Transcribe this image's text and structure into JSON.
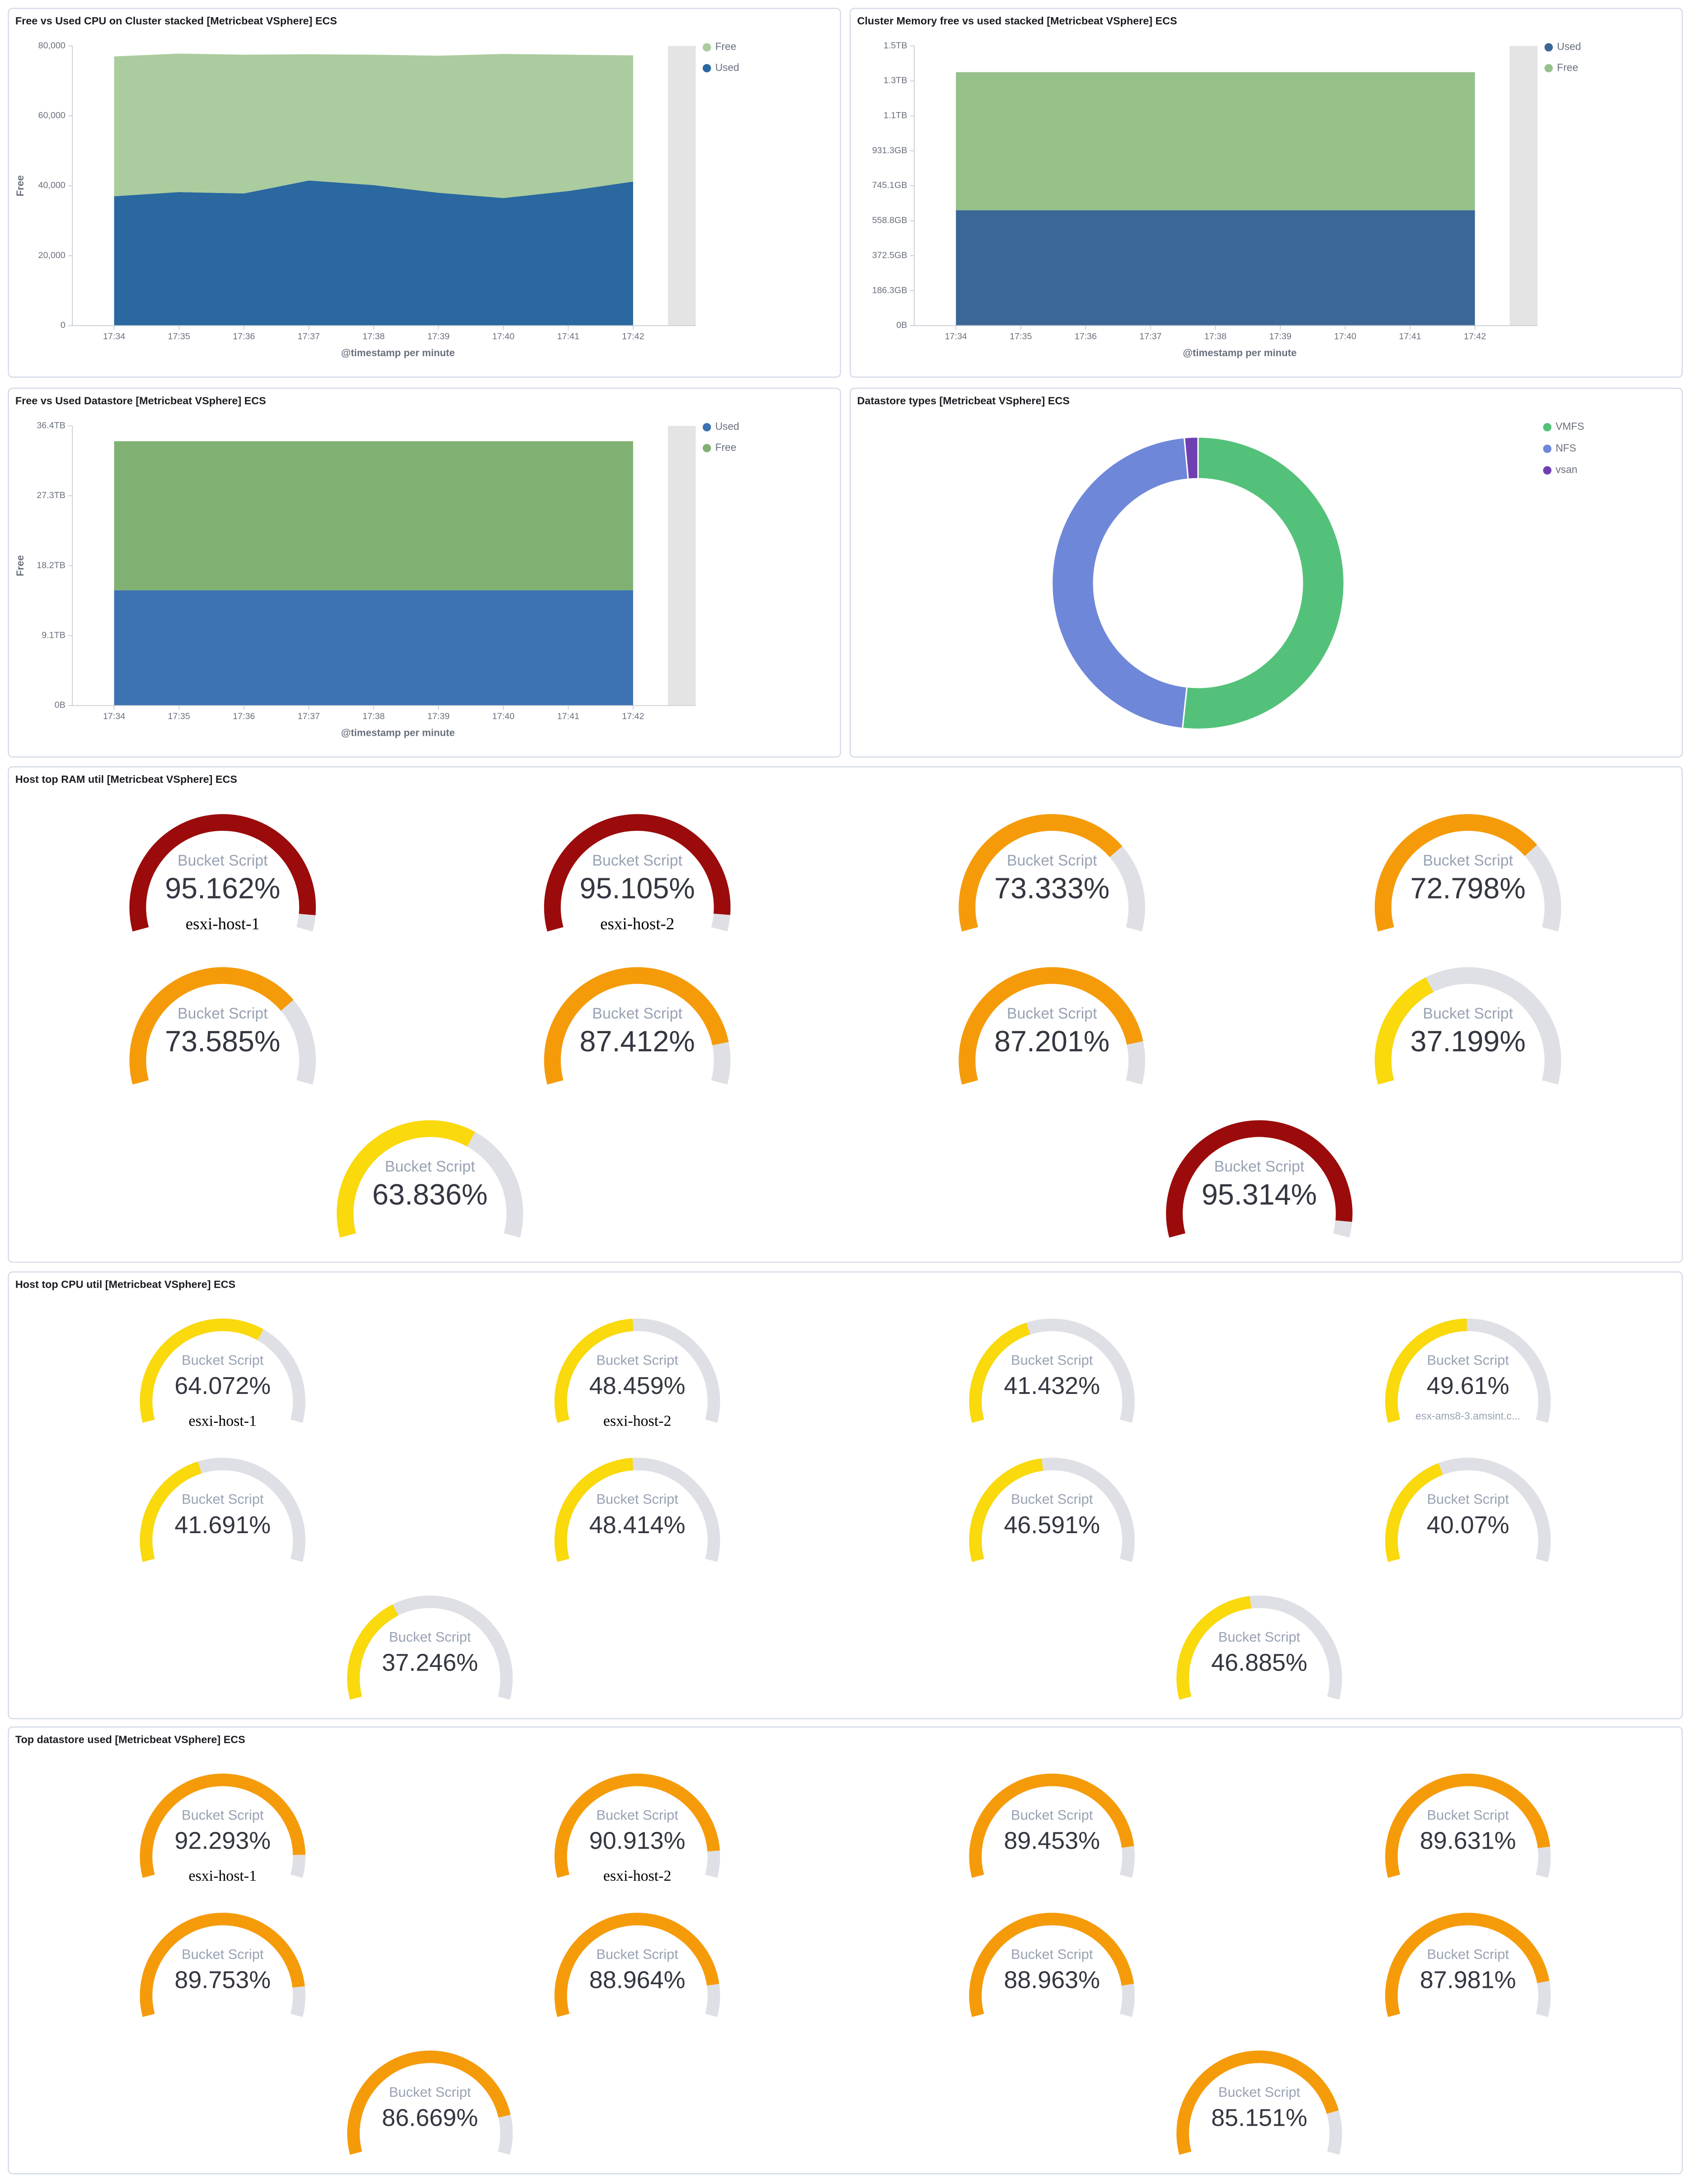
{
  "chart_data": [
    {
      "type": "area",
      "title": "Free vs Used CPU on Cluster stacked [Metricbeat VSphere] ECS",
      "x_label": "@timestamp per minute",
      "y_label": "Free",
      "reverse_legend": true,
      "categories": [
        "17:34",
        "17:35",
        "17:36",
        "17:37",
        "17:38",
        "17:39",
        "17:40",
        "17:41",
        "17:42"
      ],
      "series": [
        {
          "name": "Used",
          "color": "#2a689f",
          "values": [
            37000,
            38200,
            37800,
            41500,
            40200,
            38000,
            36500,
            38500,
            41200
          ]
        },
        {
          "name": "Free",
          "color": "#abcc9e",
          "values": [
            40000,
            39600,
            39700,
            36100,
            37300,
            39200,
            41200,
            39000,
            36100
          ]
        }
      ],
      "ylim": [
        0,
        80000
      ],
      "yticks": [
        0,
        {
          "value": 20000,
          "label": "20,000"
        },
        {
          "value": 40000,
          "label": "40,000"
        },
        {
          "value": 60000,
          "label": "60,000"
        },
        {
          "value": 80000,
          "label": "80,000"
        }
      ]
    },
    {
      "type": "area",
      "title": "Cluster Memory free vs used stacked [Metricbeat VSphere] ECS",
      "x_label": "@timestamp per minute",
      "categories": [
        "17:34",
        "17:35",
        "17:36",
        "17:37",
        "17:38",
        "17:39",
        "17:40",
        "17:41",
        "17:42"
      ],
      "series": [
        {
          "name": "Used",
          "color": "#3b6796",
          "values": [
            660000000000,
            660000000000,
            660000000000,
            660000000000,
            660000000000,
            660000000000,
            660000000000,
            660000000000,
            660000000000
          ]
        },
        {
          "name": "Free",
          "color": "#97c18b",
          "values": [
            790000000000,
            790000000000,
            790000000000,
            790000000000,
            790000000000,
            790000000000,
            790000000000,
            790000000000,
            790000000000
          ]
        }
      ],
      "ylim": [
        0,
        1600000000000
      ],
      "yticks": [
        {
          "value": 0,
          "label": "0B"
        },
        {
          "value": 200000000000,
          "label": "186.3GB"
        },
        {
          "value": 400000000000,
          "label": "372.5GB"
        },
        {
          "value": 600000000000,
          "label": "558.8GB"
        },
        {
          "value": 800000000000,
          "label": "745.1GB"
        },
        {
          "value": 1000000000000,
          "label": "931.3GB"
        },
        {
          "value": 1200000000000,
          "label": "1.1TB"
        },
        {
          "value": 1400000000000,
          "label": "1.3TB"
        },
        {
          "value": 1600000000000,
          "label": "1.5TB"
        }
      ]
    },
    {
      "type": "area",
      "title": "Free vs Used Datastore [Metricbeat VSphere] ECS",
      "x_label": "@timestamp per minute",
      "y_label": "Free",
      "categories": [
        "17:34",
        "17:35",
        "17:36",
        "17:37",
        "17:38",
        "17:39",
        "17:40",
        "17:41",
        "17:42"
      ],
      "series": [
        {
          "name": "Used",
          "color": "#3d72b2",
          "values": [
            16500000000000,
            16500000000000,
            16500000000000,
            16500000000000,
            16500000000000,
            16500000000000,
            16500000000000,
            16500000000000,
            16500000000000
          ]
        },
        {
          "name": "Free",
          "color": "#81b172",
          "values": [
            21300000000000,
            21300000000000,
            21300000000000,
            21300000000000,
            21300000000000,
            21300000000000,
            21300000000000,
            21300000000000,
            21300000000000
          ]
        }
      ],
      "ylim": [
        0,
        40000000000000
      ],
      "yticks": [
        {
          "value": 0,
          "label": "0B"
        },
        {
          "value": 10000000000000,
          "label": "9.1TB"
        },
        {
          "value": 20000000000000,
          "label": "18.2TB"
        },
        {
          "value": 30000000000000,
          "label": "27.3TB"
        },
        {
          "value": 40000000000000,
          "label": "36.4TB"
        }
      ]
    },
    {
      "type": "pie",
      "donut": true,
      "title": "Datastore types [Metricbeat VSphere] ECS",
      "categories": [
        "VMFS",
        "NFS",
        "vsan"
      ],
      "values": [
        51.7,
        46.8,
        1.5
      ],
      "colors": [
        "#54c17a",
        "#6f87d8",
        "#6f3fb2"
      ]
    },
    {
      "type": "gauge",
      "title": "Host top RAM util [Metricbeat VSphere] ECS",
      "label": "Bucket Script",
      "ylim": [
        0,
        100
      ],
      "values": [
        95.162,
        95.105,
        73.333,
        72.798,
        73.585,
        87.412,
        87.201,
        37.199,
        63.836,
        95.314
      ],
      "value_labels": [
        "95.162%",
        "95.105%",
        "73.333%",
        "72.798%",
        "73.585%",
        "87.412%",
        "87.201%",
        "37.199%",
        "63.836%",
        "95.314%"
      ],
      "names": [
        "esxi-host-1",
        "esxi-host-2",
        null,
        null,
        null,
        null,
        null,
        null,
        null,
        null
      ],
      "colors": [
        "#9b0b0b",
        "#9b0b0b",
        "#f59b0a",
        "#f59b0a",
        "#f59b0a",
        "#f59b0a",
        "#f59b0a",
        "#fad90d",
        "#fad90d",
        "#9b0b0b"
      ]
    },
    {
      "type": "gauge",
      "title": "Host top CPU util [Metricbeat VSphere] ECS",
      "label": "Bucket Script",
      "ylim": [
        0,
        100
      ],
      "values": [
        64.072,
        48.459,
        41.432,
        49.61,
        41.691,
        48.414,
        46.591,
        40.07,
        37.246,
        46.885
      ],
      "value_labels": [
        "64.072%",
        "48.459%",
        "41.432%",
        "49.61%",
        "41.691%",
        "48.414%",
        "46.591%",
        "40.07%",
        "37.246%",
        "46.885%"
      ],
      "names": [
        "esxi-host-1",
        "esxi-host-2",
        null,
        "esx-ams8-3.amsint.c...",
        null,
        null,
        null,
        null,
        null,
        null
      ],
      "colors": [
        "#fad90d",
        "#fad90d",
        "#fad90d",
        "#fad90d",
        "#fad90d",
        "#fad90d",
        "#fad90d",
        "#fad90d",
        "#fad90d",
        "#fad90d"
      ]
    },
    {
      "type": "gauge",
      "title": "Top datastore used [Metricbeat VSphere] ECS",
      "label": "Bucket Script",
      "ylim": [
        0,
        100
      ],
      "values": [
        92.293,
        90.913,
        89.453,
        89.631,
        89.753,
        88.964,
        88.963,
        87.981,
        86.669,
        85.151
      ],
      "value_labels": [
        "92.293%",
        "90.913%",
        "89.453%",
        "89.631%",
        "89.753%",
        "88.964%",
        "88.963%",
        "87.981%",
        "86.669%",
        "85.151%"
      ],
      "names": [
        "esxi-host-1",
        "esxi-host-2",
        null,
        null,
        null,
        null,
        null,
        null,
        null,
        null
      ],
      "colors": [
        "#f59b0a",
        "#f59b0a",
        "#f59b0a",
        "#f59b0a",
        "#f59b0a",
        "#f59b0a",
        "#f59b0a",
        "#f59b0a",
        "#f59b0a",
        "#f59b0a"
      ]
    }
  ]
}
